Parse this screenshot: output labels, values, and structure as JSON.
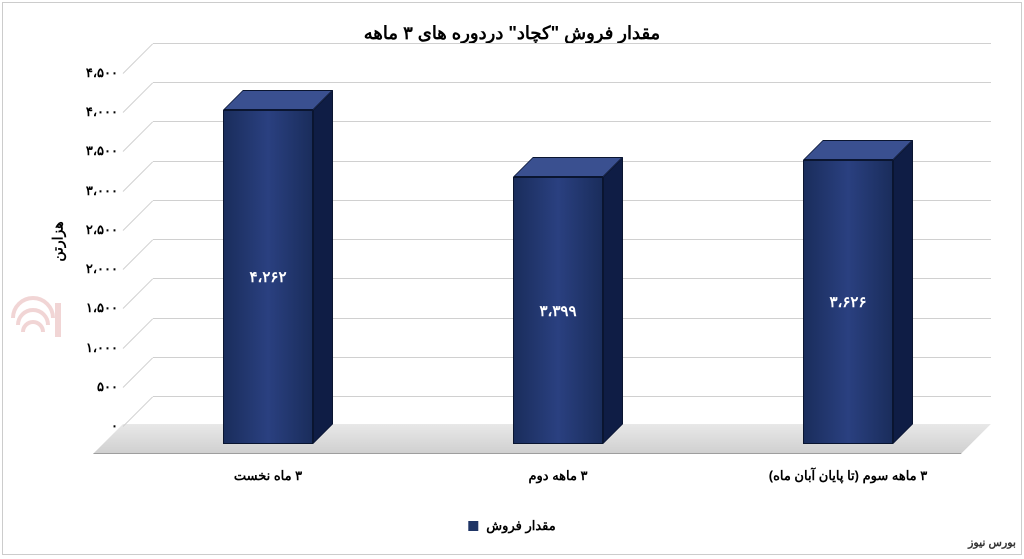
{
  "chart": {
    "type": "bar-3d",
    "title": "مقدار فروش \"کچاد\" دردوره های ۳ ماهه",
    "title_fontsize": 18,
    "background_color": "#ffffff",
    "border_color": "#cccccc",
    "y_axis": {
      "title": "هزارتن",
      "min": 0,
      "max": 4500,
      "step": 500,
      "ticks": [
        {
          "value": 0,
          "label": "۰"
        },
        {
          "value": 500,
          "label": "۵۰۰"
        },
        {
          "value": 1000,
          "label": "۱،۰۰۰"
        },
        {
          "value": 1500,
          "label": "۱،۵۰۰"
        },
        {
          "value": 2000,
          "label": "۲،۰۰۰"
        },
        {
          "value": 2500,
          "label": "۲،۵۰۰"
        },
        {
          "value": 3000,
          "label": "۳،۰۰۰"
        },
        {
          "value": 3500,
          "label": "۳،۵۰۰"
        },
        {
          "value": 4000,
          "label": "۴،۰۰۰"
        },
        {
          "value": 4500,
          "label": "۴،۵۰۰"
        }
      ],
      "grid_color": "#d0d0d0",
      "label_fontsize": 13
    },
    "categories": [
      "۳ ماه نخست",
      "۳ ماهه دوم",
      "۳ ماهه سوم (تا پایان آبان ماه)"
    ],
    "series": {
      "name": "مقدار فروش",
      "values": [
        4262,
        3399,
        3626
      ],
      "value_labels": [
        "۴،۲۶۲",
        "۳،۳۹۹",
        "۳،۶۲۶"
      ],
      "bar_color_front": "#1f3566",
      "bar_color_top": "#3a5090",
      "bar_color_side": "#0f1d45",
      "bar_border_color": "#0a1530",
      "value_label_color": "#ffffff",
      "value_label_fontsize": 15
    },
    "legend": {
      "label": "مقدار فروش",
      "marker_color": "#1f3566"
    },
    "floor_color": "#e0e0e0"
  },
  "watermark": {
    "logo_color": "#d88888",
    "text": "بورس نیوز"
  }
}
